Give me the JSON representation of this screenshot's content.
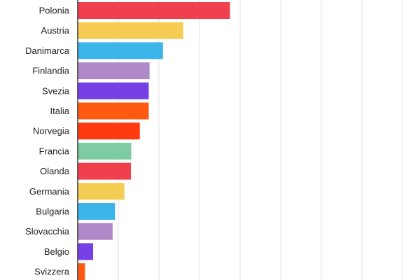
{
  "chart_data": {
    "type": "bar",
    "orientation": "horizontal",
    "categories": [
      "Polonia",
      "Austria",
      "Danimarca",
      "Finlandia",
      "Svezia",
      "Italia",
      "Norvegia",
      "Francia",
      "Olanda",
      "Germania",
      "Bulgaria",
      "Slovacchia",
      "Belgio",
      "Svizzera"
    ],
    "values": [
      37.5,
      26,
      21,
      17.7,
      17.5,
      17.5,
      15.3,
      13.2,
      13.1,
      11.5,
      9.2,
      8.6,
      3.8,
      1.8
    ],
    "colors": [
      "#f0404e",
      "#f5cd54",
      "#3cb5ea",
      "#b08ac8",
      "#7540e6",
      "#ff5a12",
      "#ff3a10",
      "#7ecba6",
      "#f0404e",
      "#f5cd54",
      "#3cb5ea",
      "#b08ac8",
      "#7540e6",
      "#ff5a12"
    ],
    "title": "",
    "xlabel": "",
    "ylabel": "",
    "xlim": [
      0,
      80
    ],
    "grid": true
  }
}
